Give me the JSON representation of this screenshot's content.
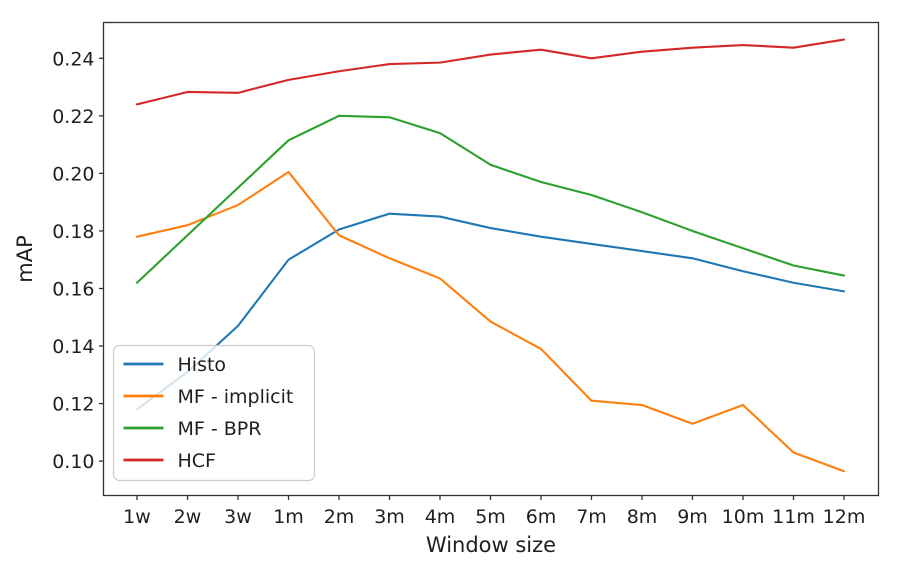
{
  "chart_data": {
    "type": "line",
    "title": "",
    "xlabel": "Window size",
    "ylabel": "mAP",
    "categories": [
      "1w",
      "2w",
      "3w",
      "1m",
      "2m",
      "3m",
      "4m",
      "5m",
      "6m",
      "7m",
      "8m",
      "9m",
      "10m",
      "11m",
      "12m"
    ],
    "series": [
      {
        "name": "Histo",
        "color": "#1f77b4",
        "values": [
          0.118,
          0.131,
          0.147,
          0.17,
          0.1805,
          0.186,
          0.185,
          0.181,
          0.178,
          0.1755,
          0.173,
          0.1705,
          0.166,
          0.162,
          0.159
        ]
      },
      {
        "name": "MF - implicit",
        "color": "#ff7f0e",
        "values": [
          0.178,
          0.182,
          0.189,
          0.2005,
          0.1785,
          0.1705,
          0.1635,
          0.1485,
          0.139,
          0.121,
          0.1195,
          0.113,
          0.1195,
          0.103,
          0.0965
        ]
      },
      {
        "name": "MF - BPR",
        "color": "#2ca02c",
        "values": [
          0.162,
          0.1785,
          0.195,
          0.2115,
          0.22,
          0.2195,
          0.214,
          0.203,
          0.197,
          0.1925,
          0.1865,
          0.18,
          0.174,
          0.168,
          0.1645
        ]
      },
      {
        "name": "HCF",
        "color": "#d62728",
        "values": [
          0.224,
          0.2283,
          0.228,
          0.2325,
          0.2355,
          0.238,
          0.2385,
          0.2413,
          0.243,
          0.24,
          0.2423,
          0.2437,
          0.2446,
          0.2437,
          0.2465
        ]
      }
    ],
    "yticks": [
      0.1,
      0.12,
      0.14,
      0.16,
      0.18,
      0.2,
      0.22,
      0.24
    ],
    "ytick_labels": [
      "0.10",
      "0.12",
      "0.14",
      "0.16",
      "0.18",
      "0.20",
      "0.22",
      "0.24"
    ],
    "ylim": [
      0.088,
      0.2525
    ],
    "grid": false,
    "legend": {
      "position": "lower left",
      "entries": [
        "Histo",
        "MF - implicit",
        "MF - BPR",
        "HCF"
      ]
    }
  }
}
